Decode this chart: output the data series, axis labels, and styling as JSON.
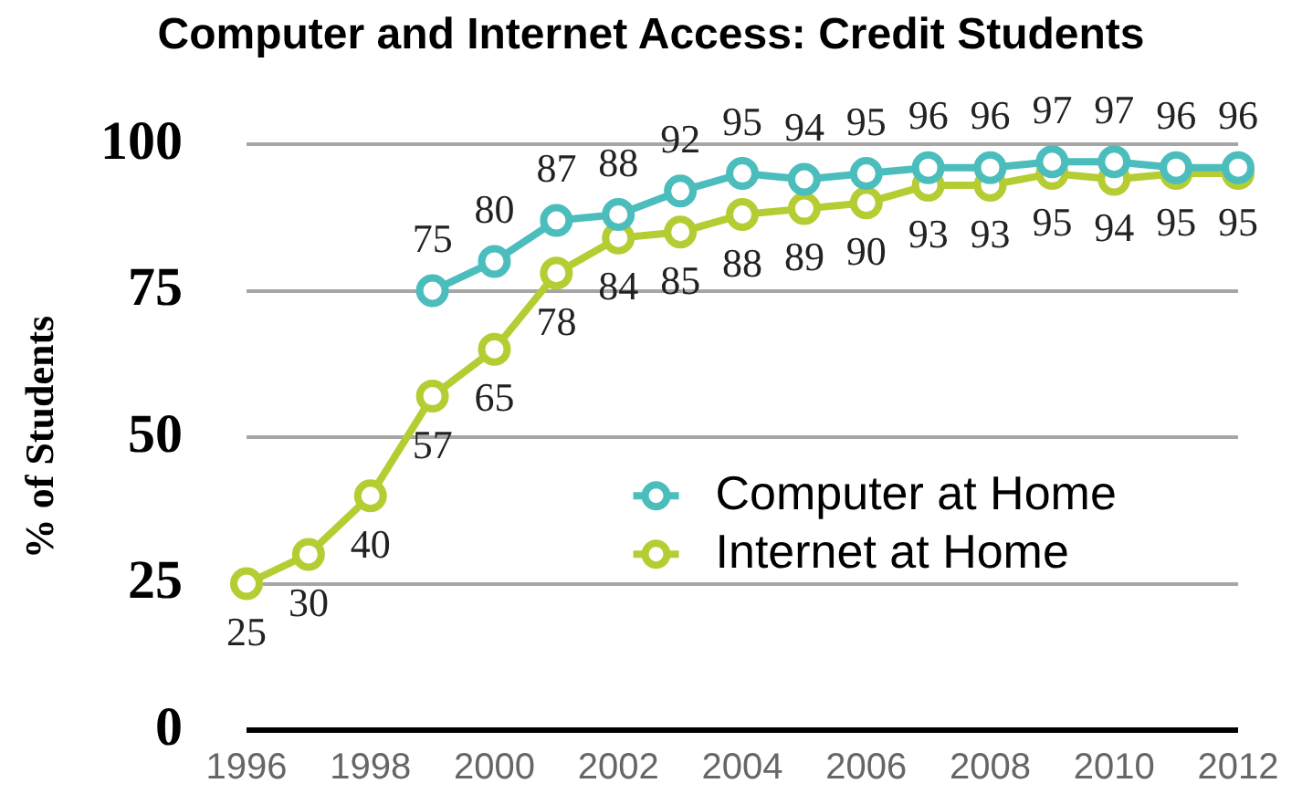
{
  "chart_data": {
    "type": "line",
    "title": "Computer and Internet Access: Credit Students",
    "ylabel": "% of Students",
    "x": [
      1996,
      1997,
      1998,
      1999,
      2000,
      2001,
      2002,
      2003,
      2004,
      2005,
      2006,
      2007,
      2008,
      2009,
      2010,
      2011,
      2012
    ],
    "series": [
      {
        "name": "Computer at Home",
        "color": "#4bbdbd",
        "values": [
          null,
          null,
          null,
          75,
          80,
          87,
          88,
          92,
          95,
          94,
          95,
          96,
          96,
          97,
          97,
          96,
          96
        ]
      },
      {
        "name": "Internet at Home",
        "color": "#b5cd32",
        "values": [
          25,
          30,
          40,
          57,
          65,
          78,
          84,
          85,
          88,
          89,
          90,
          93,
          93,
          95,
          94,
          95,
          95
        ]
      }
    ],
    "xlim": [
      1996,
      2012
    ],
    "xticks": [
      1996,
      1998,
      2000,
      2002,
      2004,
      2006,
      2008,
      2010,
      2012
    ],
    "ylim": [
      0,
      100
    ],
    "yticks": [
      0,
      25,
      50,
      75,
      100
    ],
    "grid": "y",
    "legend": "right",
    "marker": "circle",
    "line_style": "solid",
    "data_labels": true
  }
}
